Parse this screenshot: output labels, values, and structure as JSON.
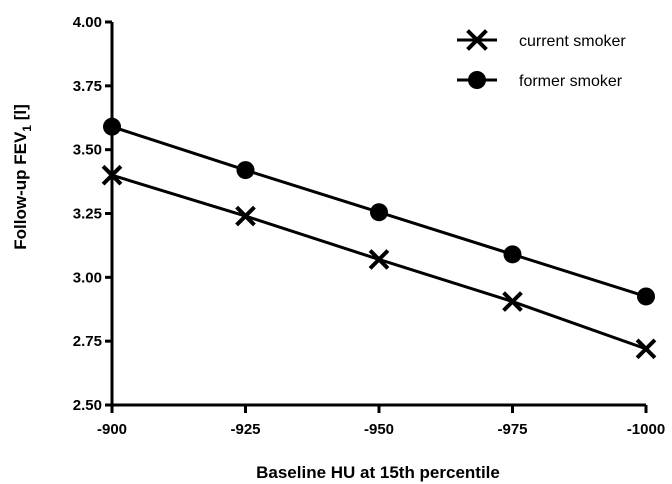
{
  "chart_data": {
    "type": "line",
    "x": [
      -900,
      -925,
      -950,
      -975,
      -1000
    ],
    "xlabel": "Baseline HU at 15th percentile",
    "ylabel": "Follow-up FEV",
    "ylabel_subscript": "1",
    "ylabel_unit": " [l]",
    "xlim": [
      -900,
      -1000
    ],
    "ylim": [
      2.5,
      4.0
    ],
    "x_ticks": [
      "-900",
      "-925",
      "-950",
      "-975",
      "-1000"
    ],
    "y_ticks": [
      "2.50",
      "2.75",
      "3.00",
      "3.25",
      "3.50",
      "3.75",
      "4.00"
    ],
    "grid": false,
    "legend_position": "top-right",
    "series": [
      {
        "name": "current smoker",
        "marker": "x",
        "values": [
          3.4,
          3.24,
          3.07,
          2.905,
          2.72
        ]
      },
      {
        "name": "former smoker",
        "marker": "circle",
        "values": [
          3.59,
          3.42,
          3.255,
          3.09,
          2.925
        ]
      }
    ],
    "colors": {
      "line": "#000000",
      "marker": "#000000"
    }
  }
}
